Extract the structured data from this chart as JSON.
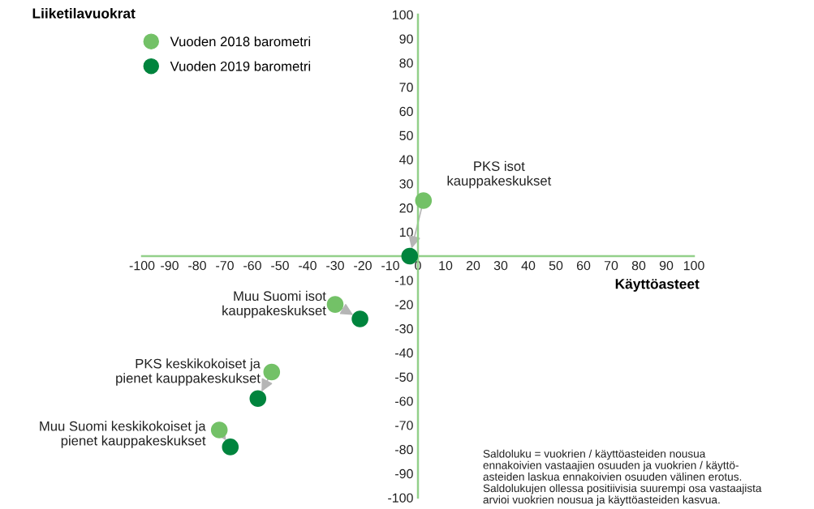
{
  "chart_data": {
    "type": "scatter",
    "xlabel": "Käyttöasteet",
    "ylabel": "Liiketilavuokrat",
    "series": [
      {
        "name": "Vuoden 2018 barometri",
        "color": "#73c167",
        "x": [
          2,
          -30,
          -53,
          -72
        ],
        "values": [
          23,
          -20,
          -48,
          -72
        ]
      },
      {
        "name": "Vuoden 2019 barometri",
        "color": "#00843d",
        "x": [
          -3,
          -21,
          -58,
          -68
        ],
        "values": [
          0,
          -26,
          -59,
          -79
        ]
      }
    ],
    "xlim": [
      -100,
      100
    ],
    "ylim": [
      -100,
      100
    ],
    "xticks": [
      -100,
      -90,
      -80,
      -70,
      -60,
      -50,
      -40,
      -30,
      -20,
      -10,
      0,
      10,
      20,
      30,
      40,
      50,
      60,
      70,
      80,
      90,
      100
    ],
    "yticks": [
      -100,
      -90,
      -80,
      -70,
      -60,
      -50,
      -40,
      -30,
      -20,
      -10,
      10,
      20,
      30,
      40,
      50,
      60,
      70,
      80,
      90,
      100
    ],
    "annotations": [
      {
        "text": "PKS isot\nkauppakeskukset",
        "x": 2,
        "y": 23
      },
      {
        "text": "Muu Suomi isot\nkauppakeskukset",
        "x": -30,
        "y": -20
      },
      {
        "text": "PKS keskikokoiset ja\npienet kauppakeskukset",
        "x": -53,
        "y": -48
      },
      {
        "text": "Muu Suomi keskikokoiset ja\npienet kauppakeskukset",
        "x": -72,
        "y": -72
      },
      "Saldoluku = vuokrien / käyttöasteiden nousua\nennakoivien vastaajien osuuden ja vuokrien / käyttö-\nasteiden laskua ennakoivien osuuden välinen erotus.\nSaldolukujen ollessa positiivisia suurempi osa vastaajista\narvioi vuokrien nousua ja käyttöasteiden kasvua."
    ],
    "legend": "top left",
    "grid": false,
    "marker": "circle"
  }
}
